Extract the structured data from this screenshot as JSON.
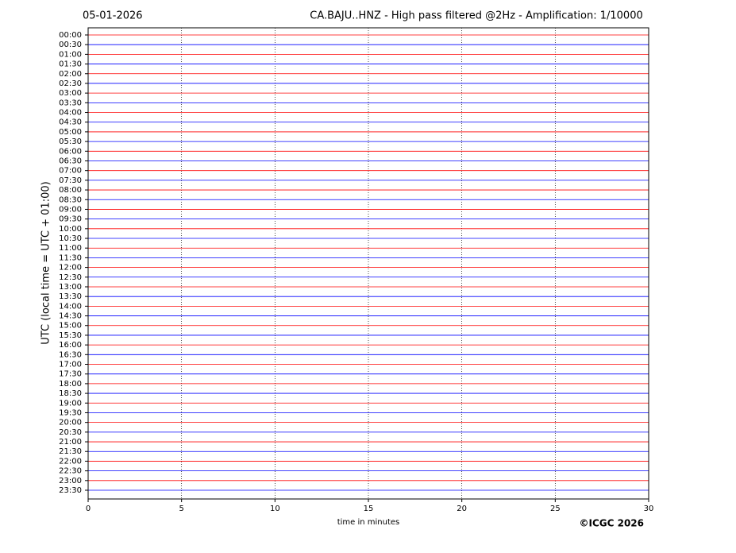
{
  "chart_data": {
    "type": "helicorder",
    "date": "05-01-2026",
    "title": "CA.BAJU..HNZ - High pass filtered @2Hz - Amplification: 1/10000",
    "xlabel": "time in minutes",
    "ylabel": "UTC (local time = UTC + 01:00)",
    "credit": "©ICGC 2026",
    "categories": [
      "00:00",
      "00:30",
      "01:00",
      "01:30",
      "02:00",
      "02:30",
      "03:00",
      "03:30",
      "04:00",
      "04:30",
      "05:00",
      "05:30",
      "06:00",
      "06:30",
      "07:00",
      "07:30",
      "08:00",
      "08:30",
      "09:00",
      "09:30",
      "10:00",
      "10:30",
      "11:00",
      "11:30",
      "12:00",
      "12:30",
      "13:00",
      "13:30",
      "14:00",
      "14:30",
      "15:00",
      "15:30",
      "16:00",
      "16:30",
      "17:00",
      "17:30",
      "18:00",
      "18:30",
      "19:00",
      "19:30",
      "20:00",
      "20:30",
      "21:00",
      "21:30",
      "22:00",
      "22:30",
      "23:00",
      "23:30"
    ],
    "colors": [
      "#ff0000",
      "#0000ff"
    ],
    "xlim": [
      0,
      30
    ],
    "xticks": [
      0,
      5,
      10,
      15,
      20,
      25,
      30
    ],
    "grid": true
  }
}
